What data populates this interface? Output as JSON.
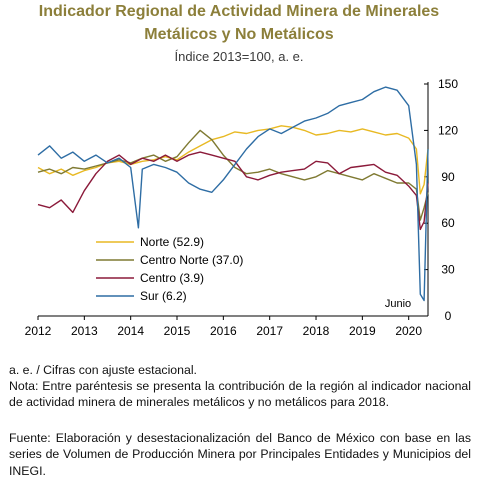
{
  "title_line1": "Indicador Regional de Actividad Minera de Minerales",
  "title_line2": "Metálicos y No Metálicos",
  "subtitle": "Índice 2013=100, a. e.",
  "notes": {
    "abbrev": "a. e. / Cifras con ajuste estacional.",
    "nota": "Nota: Entre paréntesis se presenta la contribución de la región al indicador nacional de actividad minera de minerales metálicos y no metálicos para 2018.",
    "fuente": "Fuente: Elaboración y desestacionalización del Banco de México con base en las series de Volumen de Producción Minera por Principales Entidades y Municipios del INEGI."
  },
  "colors": {
    "title": "#8c7f3a",
    "norte": "#e8b923",
    "centro_norte": "#7f7a32",
    "centro": "#8b1a3a",
    "sur": "#2e6da4"
  },
  "chart_data": {
    "type": "line",
    "title": "Indicador Regional de Actividad Minera de Minerales Metálicos y No Metálicos",
    "subtitle": "Índice 2013=100, a. e.",
    "x_axis": {
      "type": "date",
      "range": [
        "2012-01",
        "2020-06"
      ],
      "ticks": [
        "2012",
        "2013",
        "2014",
        "2015",
        "2016",
        "2017",
        "2018",
        "2019",
        "2020"
      ]
    },
    "y_axis": {
      "position": "right",
      "range": [
        0,
        150
      ],
      "ticks": [
        "0",
        "30",
        "60",
        "90",
        "120",
        "150"
      ]
    },
    "annotation": "Junio",
    "legend_position": "bottom-left",
    "grid": false,
    "series": [
      {
        "name": "Norte (52.9)",
        "color": "#e8b923",
        "points": [
          [
            "2012-01",
            96
          ],
          [
            "2012-04",
            92
          ],
          [
            "2012-07",
            95
          ],
          [
            "2012-10",
            91
          ],
          [
            "2013-01",
            94
          ],
          [
            "2013-04",
            96
          ],
          [
            "2013-07",
            99
          ],
          [
            "2013-10",
            100
          ],
          [
            "2014-01",
            98
          ],
          [
            "2014-04",
            100
          ],
          [
            "2014-07",
            101
          ],
          [
            "2014-10",
            103
          ],
          [
            "2015-01",
            101
          ],
          [
            "2015-04",
            106
          ],
          [
            "2015-07",
            110
          ],
          [
            "2015-10",
            114
          ],
          [
            "2016-01",
            116
          ],
          [
            "2016-04",
            119
          ],
          [
            "2016-07",
            118
          ],
          [
            "2016-10",
            120
          ],
          [
            "2017-01",
            121
          ],
          [
            "2017-04",
            123
          ],
          [
            "2017-07",
            122
          ],
          [
            "2017-10",
            120
          ],
          [
            "2018-01",
            117
          ],
          [
            "2018-04",
            118
          ],
          [
            "2018-07",
            120
          ],
          [
            "2018-10",
            119
          ],
          [
            "2019-01",
            121
          ],
          [
            "2019-04",
            119
          ],
          [
            "2019-07",
            117
          ],
          [
            "2019-10",
            118
          ],
          [
            "2020-01",
            115
          ],
          [
            "2020-03",
            108
          ],
          [
            "2020-04",
            79
          ],
          [
            "2020-05",
            85
          ],
          [
            "2020-06",
            108
          ]
        ]
      },
      {
        "name": "Centro Norte (37.0)",
        "color": "#7f7a32",
        "points": [
          [
            "2012-01",
            93
          ],
          [
            "2012-04",
            95
          ],
          [
            "2012-07",
            92
          ],
          [
            "2012-10",
            96
          ],
          [
            "2013-01",
            95
          ],
          [
            "2013-04",
            97
          ],
          [
            "2013-07",
            99
          ],
          [
            "2013-10",
            101
          ],
          [
            "2014-01",
            99
          ],
          [
            "2014-04",
            102
          ],
          [
            "2014-07",
            104
          ],
          [
            "2014-10",
            100
          ],
          [
            "2015-01",
            103
          ],
          [
            "2015-04",
            112
          ],
          [
            "2015-07",
            120
          ],
          [
            "2015-10",
            114
          ],
          [
            "2016-01",
            104
          ],
          [
            "2016-04",
            96
          ],
          [
            "2016-07",
            92
          ],
          [
            "2016-10",
            93
          ],
          [
            "2017-01",
            95
          ],
          [
            "2017-04",
            92
          ],
          [
            "2017-07",
            90
          ],
          [
            "2017-10",
            88
          ],
          [
            "2018-01",
            90
          ],
          [
            "2018-04",
            94
          ],
          [
            "2018-07",
            92
          ],
          [
            "2018-10",
            90
          ],
          [
            "2019-01",
            88
          ],
          [
            "2019-04",
            92
          ],
          [
            "2019-07",
            89
          ],
          [
            "2019-10",
            86
          ],
          [
            "2020-01",
            86
          ],
          [
            "2020-03",
            82
          ],
          [
            "2020-04",
            62
          ],
          [
            "2020-05",
            70
          ],
          [
            "2020-06",
            80
          ]
        ]
      },
      {
        "name": "Centro (3.9)",
        "color": "#8b1a3a",
        "points": [
          [
            "2012-01",
            72
          ],
          [
            "2012-04",
            70
          ],
          [
            "2012-07",
            75
          ],
          [
            "2012-10",
            67
          ],
          [
            "2013-01",
            81
          ],
          [
            "2013-04",
            92
          ],
          [
            "2013-07",
            100
          ],
          [
            "2013-10",
            104
          ],
          [
            "2014-01",
            98
          ],
          [
            "2014-04",
            102
          ],
          [
            "2014-07",
            100
          ],
          [
            "2014-10",
            104
          ],
          [
            "2015-01",
            100
          ],
          [
            "2015-04",
            104
          ],
          [
            "2015-07",
            106
          ],
          [
            "2015-10",
            104
          ],
          [
            "2016-01",
            102
          ],
          [
            "2016-04",
            100
          ],
          [
            "2016-07",
            90
          ],
          [
            "2016-10",
            88
          ],
          [
            "2017-01",
            91
          ],
          [
            "2017-04",
            93
          ],
          [
            "2017-07",
            94
          ],
          [
            "2017-10",
            95
          ],
          [
            "2018-01",
            100
          ],
          [
            "2018-04",
            99
          ],
          [
            "2018-07",
            92
          ],
          [
            "2018-10",
            96
          ],
          [
            "2019-01",
            97
          ],
          [
            "2019-04",
            98
          ],
          [
            "2019-07",
            93
          ],
          [
            "2019-10",
            91
          ],
          [
            "2020-01",
            84
          ],
          [
            "2020-03",
            78
          ],
          [
            "2020-04",
            56
          ],
          [
            "2020-05",
            61
          ],
          [
            "2020-06",
            86
          ]
        ]
      },
      {
        "name": "Sur (6.2)",
        "color": "#2e6da4",
        "points": [
          [
            "2012-01",
            104
          ],
          [
            "2012-04",
            110
          ],
          [
            "2012-07",
            102
          ],
          [
            "2012-10",
            106
          ],
          [
            "2013-01",
            100
          ],
          [
            "2013-04",
            104
          ],
          [
            "2013-07",
            99
          ],
          [
            "2013-10",
            102
          ],
          [
            "2014-01",
            96
          ],
          [
            "2014-03",
            57
          ],
          [
            "2014-04",
            95
          ],
          [
            "2014-07",
            98
          ],
          [
            "2014-10",
            96
          ],
          [
            "2015-01",
            93
          ],
          [
            "2015-04",
            86
          ],
          [
            "2015-07",
            82
          ],
          [
            "2015-10",
            80
          ],
          [
            "2016-01",
            88
          ],
          [
            "2016-04",
            98
          ],
          [
            "2016-07",
            108
          ],
          [
            "2016-10",
            116
          ],
          [
            "2017-01",
            121
          ],
          [
            "2017-04",
            118
          ],
          [
            "2017-07",
            122
          ],
          [
            "2017-10",
            126
          ],
          [
            "2018-01",
            128
          ],
          [
            "2018-04",
            131
          ],
          [
            "2018-07",
            136
          ],
          [
            "2018-10",
            138
          ],
          [
            "2019-01",
            140
          ],
          [
            "2019-04",
            145
          ],
          [
            "2019-07",
            148
          ],
          [
            "2019-10",
            146
          ],
          [
            "2020-01",
            136
          ],
          [
            "2020-03",
            98
          ],
          [
            "2020-04",
            14
          ],
          [
            "2020-05",
            10
          ],
          [
            "2020-06",
            108
          ]
        ]
      }
    ]
  }
}
